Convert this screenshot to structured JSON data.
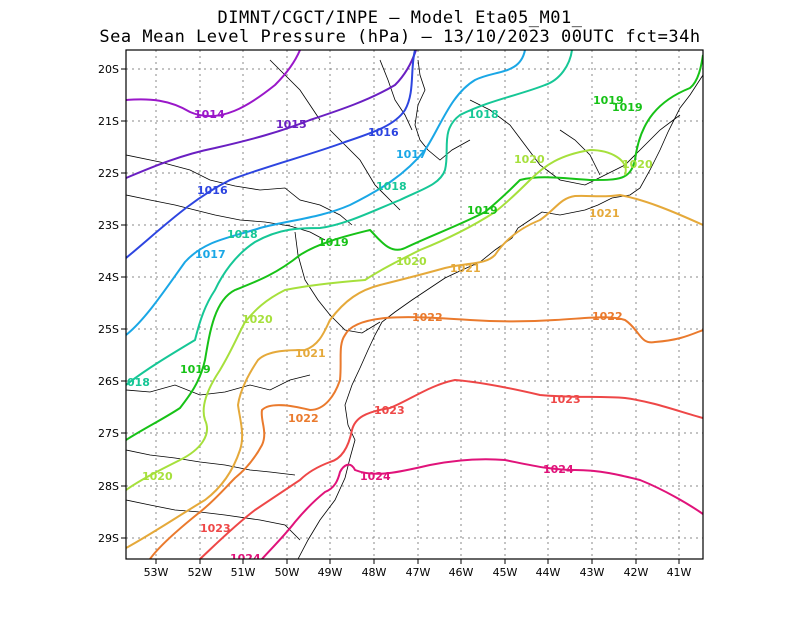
{
  "title_line1": "DIMNT/CGCT/INPE —  Model Eta05_M01_",
  "title_line2": "Sea Mean Level Pressure (hPa) — 13/10/2023 00UTC fct=34h",
  "lat_ticks": [
    "20S",
    "21S",
    "22S",
    "23S",
    "24S",
    "25S",
    "26S",
    "27S",
    "28S",
    "29S"
  ],
  "lon_ticks": [
    "53W",
    "52W",
    "51W",
    "50W",
    "49W",
    "48W",
    "47W",
    "46W",
    "45W",
    "44W",
    "43W",
    "42W",
    "41W"
  ],
  "contours": [
    {
      "level": "1014",
      "color": "#9a17c9"
    },
    {
      "level": "1015",
      "color": "#6a1fc2"
    },
    {
      "level": "1016",
      "color": "#2d45e0"
    },
    {
      "level": "1017",
      "color": "#1aa7e6"
    },
    {
      "level": "1018",
      "color": "#16c796"
    },
    {
      "level": "1019",
      "color": "#17c217"
    },
    {
      "level": "1020",
      "color": "#a6e03c"
    },
    {
      "level": "1021",
      "color": "#e5a93a"
    },
    {
      "level": "1022",
      "color": "#ea7a2d"
    },
    {
      "level": "1023",
      "color": "#ee4747"
    },
    {
      "level": "1024",
      "color": "#e0137a"
    }
  ]
}
